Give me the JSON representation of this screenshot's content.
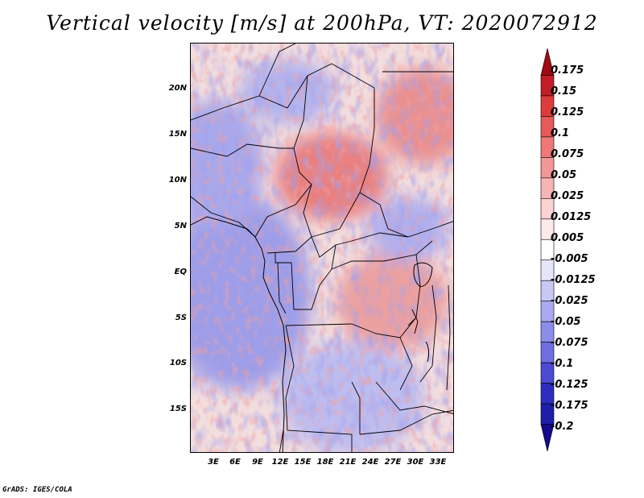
{
  "title": "Vertical velocity [m/s] at 200hPa, VT: 2020072912",
  "lat_labels": [
    "20N",
    "15N",
    "10N",
    "5N",
    "EQ",
    "5S",
    "10S",
    "15S"
  ],
  "lon_labels": [
    "3E",
    "6E",
    "9E",
    "12E",
    "15E",
    "18E",
    "21E",
    "24E",
    "27E",
    "30E",
    "33E"
  ],
  "colorbar": {
    "levels": [
      "0.175",
      "0.15",
      "0.125",
      "0.1",
      "0.075",
      "0.05",
      "0.025",
      "0.0125",
      "0.005",
      "-0.005",
      "-0.0125",
      "-0.025",
      "-0.05",
      "-0.075",
      "-0.1",
      "-0.125",
      "-0.175",
      "-0.2"
    ],
    "colors": [
      "#a00a14",
      "#c31e28",
      "#dc3c3c",
      "#e65a5a",
      "#ee7878",
      "#f29696",
      "#f6b4b4",
      "#fad2d2",
      "#fde9e9",
      "#ffffff",
      "#e6e6fa",
      "#c8c8f5",
      "#aaaaf0",
      "#8c8ceb",
      "#6e6ee1",
      "#4b4bd2",
      "#2d2dbe",
      "#1e1eaa",
      "#140a8c"
    ]
  },
  "footer": "GrADS: IGES/COLA"
}
